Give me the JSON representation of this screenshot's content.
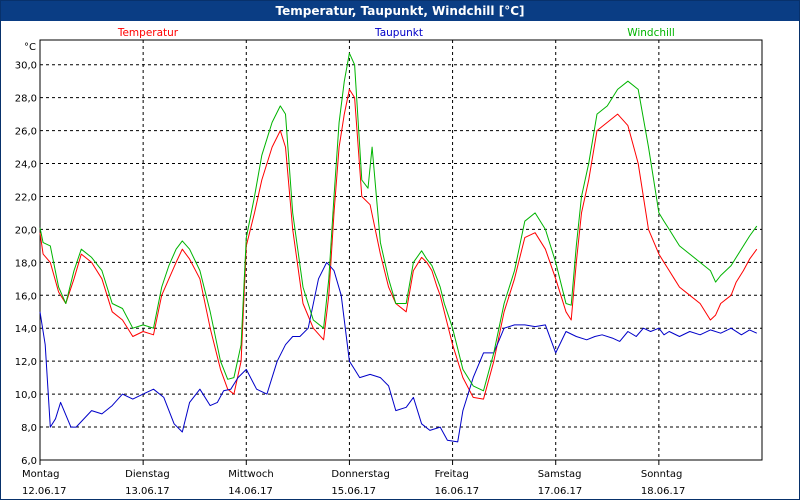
{
  "window": {
    "title": "Temperatur, Taupunkt, Windchill [°C]"
  },
  "colors": {
    "temperatur": "#ff0000",
    "taupunkt": "#0000c8",
    "windchill": "#00b400",
    "grid": "#000000"
  },
  "chart_data": {
    "type": "line",
    "title": "Temperatur, Taupunkt, Windchill [°C]",
    "ylabel": "°C",
    "ylim": [
      6,
      31.5
    ],
    "y_ticks": [
      "6,0",
      "8,0",
      "10,0",
      "12,0",
      "14,0",
      "16,0",
      "18,0",
      "20,0",
      "22,0",
      "24,0",
      "26,0",
      "28,0",
      "30,0"
    ],
    "x_days": [
      {
        "day": "Montag",
        "date": "12.06.17"
      },
      {
        "day": "Dienstag",
        "date": "13.06.17"
      },
      {
        "day": "Mittwoch",
        "date": "14.06.17"
      },
      {
        "day": "Donnerstag",
        "date": "15.06.17"
      },
      {
        "day": "Freitag",
        "date": "16.06.17"
      },
      {
        "day": "Samstag",
        "date": "17.06.17"
      },
      {
        "day": "Sonntag",
        "date": "18.06.17"
      }
    ],
    "x_unit": "days since 12.06.17 00:00",
    "xlim": [
      0,
      7
    ],
    "series": [
      {
        "name": "Temperatur",
        "key": "temperatur",
        "x": [
          0,
          0.03,
          0.1,
          0.18,
          0.25,
          0.33,
          0.4,
          0.5,
          0.6,
          0.7,
          0.8,
          0.9,
          1.0,
          1.1,
          1.18,
          1.25,
          1.32,
          1.38,
          1.45,
          1.55,
          1.65,
          1.75,
          1.82,
          1.88,
          1.95,
          2.0,
          2.08,
          2.15,
          2.25,
          2.33,
          2.38,
          2.45,
          2.55,
          2.65,
          2.75,
          2.8,
          2.85,
          2.9,
          2.95,
          3.0,
          3.05,
          3.12,
          3.2,
          3.3,
          3.38,
          3.45,
          3.55,
          3.62,
          3.7,
          3.75,
          3.8,
          3.85,
          3.88,
          3.92,
          4.0,
          4.1,
          4.2,
          4.3,
          4.4,
          4.5,
          4.6,
          4.7,
          4.8,
          4.9,
          5.0,
          5.1,
          5.15,
          5.2,
          5.25,
          5.32,
          5.4,
          5.5,
          5.6,
          5.7,
          5.8,
          5.9,
          6.0,
          6.05,
          6.1,
          6.15,
          6.2,
          6.3,
          6.4,
          6.5,
          6.55,
          6.6,
          6.7,
          6.75,
          6.82,
          6.88,
          6.95
        ],
        "values": [
          19.8,
          18.5,
          18,
          16.2,
          15.5,
          17,
          18.5,
          18,
          17,
          15,
          14.5,
          13.5,
          13.8,
          13.6,
          16,
          17,
          18,
          18.8,
          18.2,
          17,
          14,
          11.5,
          10.3,
          10,
          12,
          19,
          21,
          23,
          25,
          26,
          25,
          20,
          15.5,
          14,
          13.3,
          16,
          21,
          25,
          27,
          28.5,
          28,
          22,
          21.5,
          18.5,
          16.5,
          15.5,
          15,
          17.5,
          18.3,
          18,
          17.5,
          16.5,
          16,
          15,
          13,
          11,
          9.8,
          9.7,
          12,
          15,
          17,
          19.5,
          19.8,
          18.8,
          17,
          15,
          14.5,
          18,
          21,
          23,
          26,
          26.5,
          27,
          26.3,
          24,
          20,
          18.5,
          18,
          17.5,
          17,
          16.5,
          16,
          15.5,
          14.5,
          14.8,
          15.5,
          16,
          16.8,
          17.5,
          18.2,
          18.8
        ]
      },
      {
        "name": "Taupunkt",
        "key": "taupunkt",
        "x": [
          0,
          0.05,
          0.1,
          0.15,
          0.2,
          0.3,
          0.35,
          0.5,
          0.6,
          0.7,
          0.8,
          0.9,
          1.0,
          1.1,
          1.2,
          1.3,
          1.38,
          1.45,
          1.55,
          1.65,
          1.72,
          1.78,
          1.85,
          1.92,
          2.0,
          2.1,
          2.2,
          2.3,
          2.38,
          2.45,
          2.52,
          2.6,
          2.7,
          2.78,
          2.85,
          2.92,
          3.0,
          3.05,
          3.1,
          3.2,
          3.3,
          3.38,
          3.45,
          3.55,
          3.62,
          3.7,
          3.78,
          3.88,
          3.95,
          4.05,
          4.1,
          4.2,
          4.3,
          4.4,
          4.5,
          4.6,
          4.7,
          4.8,
          4.9,
          5.0,
          5.1,
          5.2,
          5.3,
          5.38,
          5.45,
          5.55,
          5.62,
          5.7,
          5.78,
          5.85,
          5.92,
          6.0,
          6.05,
          6.1,
          6.2,
          6.3,
          6.4,
          6.5,
          6.6,
          6.7,
          6.8,
          6.88,
          6.95
        ],
        "values": [
          15,
          13,
          8,
          8.5,
          9.5,
          8,
          8,
          9,
          8.8,
          9.3,
          10,
          9.7,
          10,
          10.3,
          9.8,
          8.2,
          7.7,
          9.5,
          10.3,
          9.3,
          9.5,
          10.2,
          10.3,
          11,
          11.5,
          10.3,
          10,
          12,
          13,
          13.5,
          13.5,
          14,
          17,
          18,
          17.5,
          16,
          12,
          11.5,
          11,
          11.2,
          11,
          10.5,
          9,
          9.2,
          9.8,
          8.2,
          7.8,
          8,
          7.2,
          7.1,
          9,
          11,
          12.5,
          12.5,
          14,
          14.2,
          14.2,
          14.1,
          14.2,
          12.5,
          13.8,
          13.5,
          13.3,
          13.5,
          13.6,
          13.4,
          13.2,
          13.8,
          13.5,
          14,
          13.8,
          14,
          13.6,
          13.8,
          13.5,
          13.8,
          13.6,
          13.9,
          13.7,
          14,
          13.6,
          13.9,
          13.7
        ]
      },
      {
        "name": "Windchill",
        "key": "windchill",
        "x": [
          0,
          0.03,
          0.1,
          0.18,
          0.25,
          0.33,
          0.4,
          0.5,
          0.6,
          0.7,
          0.8,
          0.9,
          1.0,
          1.1,
          1.18,
          1.25,
          1.32,
          1.38,
          1.45,
          1.55,
          1.65,
          1.75,
          1.82,
          1.88,
          1.95,
          2.0,
          2.08,
          2.15,
          2.25,
          2.33,
          2.38,
          2.45,
          2.55,
          2.65,
          2.75,
          2.8,
          2.85,
          2.9,
          2.95,
          3.0,
          3.05,
          3.12,
          3.18,
          3.22,
          3.3,
          3.38,
          3.45,
          3.55,
          3.62,
          3.7,
          3.75,
          3.8,
          3.85,
          3.88,
          3.92,
          4.0,
          4.1,
          4.2,
          4.3,
          4.4,
          4.5,
          4.6,
          4.7,
          4.8,
          4.9,
          5.0,
          5.1,
          5.15,
          5.2,
          5.25,
          5.32,
          5.4,
          5.5,
          5.6,
          5.7,
          5.8,
          5.9,
          6.0,
          6.05,
          6.1,
          6.15,
          6.2,
          6.3,
          6.4,
          6.5,
          6.55,
          6.6,
          6.7,
          6.75,
          6.82,
          6.88,
          6.95
        ],
        "values": [
          20.1,
          19.2,
          19,
          16.5,
          15.5,
          17.5,
          18.8,
          18.3,
          17.5,
          15.5,
          15.2,
          14,
          14.2,
          14,
          16.5,
          17.8,
          18.8,
          19.3,
          18.8,
          17.5,
          15,
          12,
          10.9,
          11,
          13,
          19.5,
          22,
          24.5,
          26.5,
          27.5,
          27,
          21,
          16.5,
          14.5,
          14,
          17,
          22,
          26.5,
          29,
          30.7,
          30,
          23,
          22.5,
          25,
          19.2,
          17,
          15.5,
          15.5,
          18,
          18.7,
          18.2,
          17.8,
          17,
          16.5,
          15.5,
          14,
          11.5,
          10.5,
          10.2,
          12.5,
          15.5,
          17.5,
          20.5,
          21,
          20,
          18,
          15.5,
          15.4,
          19,
          22,
          24,
          27,
          27.5,
          28.5,
          29,
          28.5,
          25,
          21,
          20.5,
          20,
          19.5,
          19,
          18.5,
          18,
          17.5,
          16.8,
          17.2,
          17.8,
          18.3,
          19,
          19.6,
          20.2
        ]
      }
    ]
  }
}
